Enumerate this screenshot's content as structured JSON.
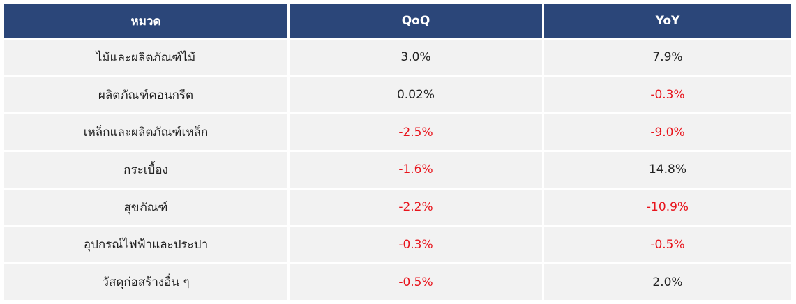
{
  "table": {
    "headers": [
      "หมวด",
      "QoQ",
      "YoY"
    ],
    "rows": [
      {
        "category": "ไม้และผลิตภัณฑ์ไม้",
        "qoq": "3.0%",
        "yoy": "7.9%"
      },
      {
        "category": "ผลิตภัณฑ์คอนกรีต",
        "qoq": "0.02%",
        "yoy": "-0.3%"
      },
      {
        "category": "เหล็กและผลิตภัณฑ์เหล็ก",
        "qoq": "-2.5%",
        "yoy": "-9.0%"
      },
      {
        "category": "กระเบื้อง",
        "qoq": "-1.6%",
        "yoy": "14.8%"
      },
      {
        "category": "สุขภัณฑ์",
        "qoq": "-2.2%",
        "yoy": "-10.9%"
      },
      {
        "category": "อุปกรณ์ไฟฟ้าและประปา",
        "qoq": "-0.3%",
        "yoy": "-0.5%"
      },
      {
        "category": "วัสดุก่อสร้างอื่น ๆ",
        "qoq": "-0.5%",
        "yoy": "2.0%"
      }
    ]
  },
  "colors": {
    "header_bg": "#2b4679",
    "header_text": "#ffffff",
    "row_bg": "#f2f2f2",
    "text": "#222222",
    "negative": "#e8141c"
  }
}
